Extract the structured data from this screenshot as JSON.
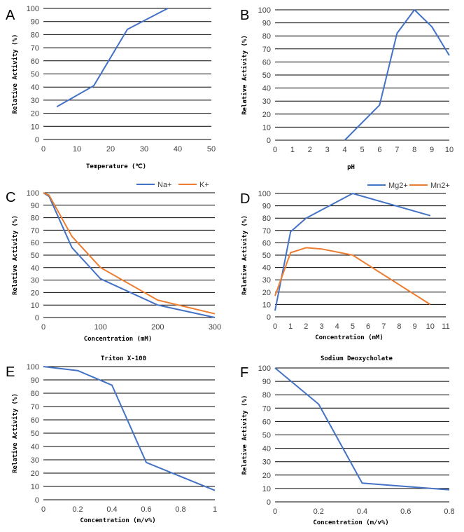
{
  "chart_data": [
    {
      "type": "line",
      "panel_label": "A",
      "title": "",
      "xlabel": "Temperature (℃)",
      "ylabel": "Relative Activity (%)",
      "xlim": [
        0,
        50
      ],
      "xticks": [
        0,
        10,
        20,
        30,
        40,
        50
      ],
      "ylim": [
        0,
        100
      ],
      "yticks": [
        0,
        10,
        20,
        30,
        40,
        50,
        60,
        70,
        80,
        90,
        100
      ],
      "grid": true,
      "series": [
        {
          "name": "",
          "color": "#4472C4",
          "x": [
            4,
            15,
            25,
            37
          ],
          "y": [
            25,
            41,
            84,
            100
          ]
        }
      ]
    },
    {
      "type": "line",
      "panel_label": "B",
      "title": "",
      "xlabel": "pH",
      "ylabel": "Relative Activity (%)",
      "xlim": [
        0,
        10
      ],
      "xticks": [
        0,
        1,
        2,
        3,
        4,
        5,
        6,
        7,
        8,
        9,
        10
      ],
      "ylim": [
        0,
        100
      ],
      "yticks": [
        0,
        10,
        20,
        30,
        40,
        50,
        60,
        70,
        80,
        90,
        100
      ],
      "grid": true,
      "series": [
        {
          "name": "",
          "color": "#4472C4",
          "x": [
            4,
            6,
            7,
            8,
            9,
            10
          ],
          "y": [
            0,
            27,
            82,
            100,
            87,
            65
          ]
        }
      ]
    },
    {
      "type": "line",
      "panel_label": "C",
      "title": "",
      "xlabel": "Concentration (mM)",
      "ylabel": "Relative Activity (%)",
      "xlim": [
        0,
        300
      ],
      "xticks": [
        0,
        100,
        200,
        300
      ],
      "ylim": [
        0,
        100
      ],
      "yticks": [
        0,
        10,
        20,
        30,
        40,
        50,
        60,
        70,
        80,
        90,
        100
      ],
      "grid": true,
      "legend": "top-right",
      "series": [
        {
          "name": "Na+",
          "color": "#4472C4",
          "x": [
            0,
            10,
            50,
            100,
            200,
            300
          ],
          "y": [
            100,
            97,
            56,
            31,
            10,
            0
          ]
        },
        {
          "name": "K+",
          "color": "#ED7D31",
          "x": [
            0,
            10,
            50,
            100,
            200,
            300
          ],
          "y": [
            100,
            98,
            65,
            40,
            14,
            3
          ]
        }
      ]
    },
    {
      "type": "line",
      "panel_label": "D",
      "title": "",
      "xlabel": "Concentration (mM)",
      "ylabel": "Relative Activity (%)",
      "xlim": [
        0,
        11
      ],
      "xticks": [
        0,
        1,
        2,
        3,
        4,
        5,
        6,
        7,
        8,
        9,
        10,
        11
      ],
      "ylim": [
        0,
        100
      ],
      "yticks": [
        0,
        10,
        20,
        30,
        40,
        50,
        60,
        70,
        80,
        90,
        100
      ],
      "grid": true,
      "legend": "top-right",
      "series": [
        {
          "name": "Mg2+",
          "color": "#4472C4",
          "x": [
            0,
            1,
            2,
            5,
            10
          ],
          "y": [
            5,
            69,
            80,
            100,
            82
          ]
        },
        {
          "name": "Mn2+",
          "color": "#ED7D31",
          "x": [
            0,
            1,
            2,
            3,
            5,
            10
          ],
          "y": [
            17,
            52,
            56,
            55,
            50,
            10
          ]
        }
      ]
    },
    {
      "type": "line",
      "panel_label": "E",
      "title": "Triton X-100",
      "xlabel": "Concentration (m/v%)",
      "ylabel": "Relative Activity (%)",
      "xlim": [
        0,
        1
      ],
      "xticks": [
        0,
        0.2,
        0.4,
        0.6,
        0.8,
        1
      ],
      "ylim": [
        0,
        100
      ],
      "yticks": [
        0,
        10,
        20,
        30,
        40,
        50,
        60,
        70,
        80,
        90,
        100
      ],
      "grid": true,
      "series": [
        {
          "name": "",
          "color": "#4472C4",
          "x": [
            0,
            0.2,
            0.4,
            0.6,
            1
          ],
          "y": [
            100,
            97,
            86,
            28,
            7
          ]
        }
      ]
    },
    {
      "type": "line",
      "panel_label": "F",
      "title": "Sodium Deoxycholate",
      "xlabel": "Concentration (m/v%)",
      "ylabel": "Relative Activity (%)",
      "xlim": [
        0,
        0.8
      ],
      "xticks": [
        0,
        0.2,
        0.4,
        0.6,
        0.8
      ],
      "ylim": [
        0,
        100
      ],
      "yticks": [
        0,
        10,
        20,
        30,
        40,
        50,
        60,
        70,
        80,
        90,
        100
      ],
      "grid": true,
      "series": [
        {
          "name": "",
          "color": "#4472C4",
          "x": [
            0,
            0.2,
            0.4,
            0.8
          ],
          "y": [
            100,
            73,
            14,
            9
          ]
        }
      ]
    }
  ]
}
